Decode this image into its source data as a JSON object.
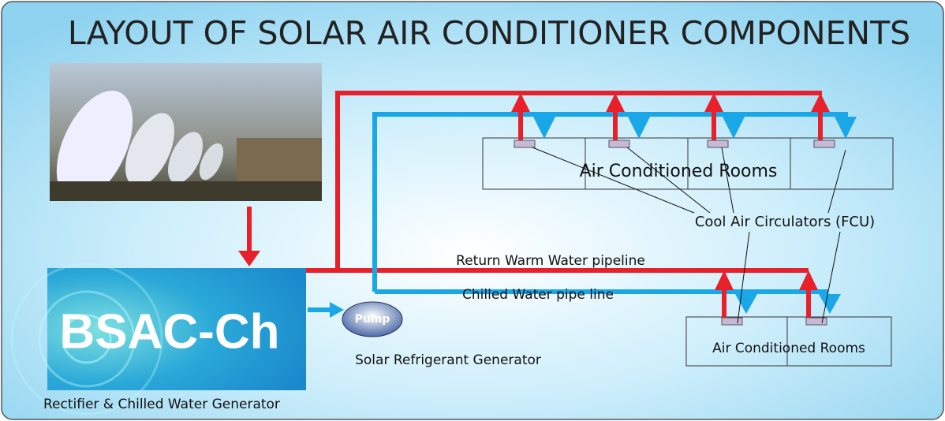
{
  "title": "LAYOUT OF SOLAR AIR CONDITIONER COMPONENTS",
  "rooms": [
    {
      "label": "Air Conditioned Rooms"
    },
    {
      "label": "Air Conditioned Rooms"
    }
  ],
  "fcu_label": "Cool Air Circulators (FCU)",
  "pipes": {
    "return": "Return Warm Water pipeline",
    "chilled": "Chilled Water pipe line"
  },
  "generator": {
    "label": "BSAC-Ch",
    "caption": "Rectifier & Chilled Water Generator"
  },
  "pump": {
    "label": "Pump",
    "caption": "Solar Refrigerant Generator"
  }
}
